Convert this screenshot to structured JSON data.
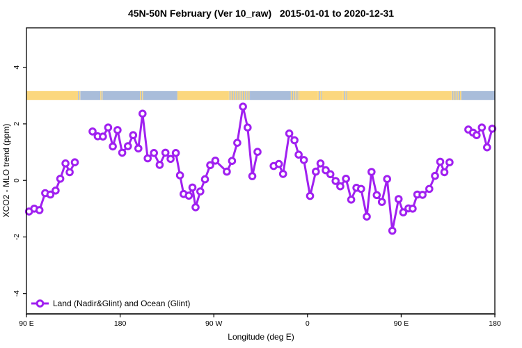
{
  "title": "45N-50N February (Ver 10_raw)   2015-01-01 to 2020-12-31",
  "colors": {
    "series_purple": "#A020F0",
    "marker_fill": "#ffffff",
    "land_band": "#FBD77E",
    "ocean_band": "#A9BDDA",
    "axis": "#000000",
    "background": "#ffffff"
  },
  "legend": {
    "label": "Land (Nadir&Glint) and Ocean (Glint)",
    "position": "bottom-left"
  },
  "chart_data": {
    "type": "line",
    "title": "45N-50N February (Ver 10_raw)   2015-01-01 to 2020-12-31",
    "xlabel": "Longitude (deg E)",
    "ylabel": "XCO2 - MLO trend (ppm)",
    "x_axis": {
      "range_deg_east_continuous": [
        90,
        540
      ],
      "ticks": [
        {
          "lon": 90,
          "label": "90 E"
        },
        {
          "lon": 180,
          "label": "180"
        },
        {
          "lon": 270,
          "label": "90 W"
        },
        {
          "lon": 360,
          "label": "0"
        },
        {
          "lon": 450,
          "label": "90 E"
        },
        {
          "lon": 540,
          "label": "180"
        }
      ]
    },
    "y_axis": {
      "range": [
        -4.7,
        5.4
      ],
      "ticks": [
        -4,
        -2,
        0,
        2,
        4
      ]
    },
    "grid": "off",
    "legend_entries": [
      "Land (Nadir&Glint) and Ocean (Glint)"
    ],
    "surface_band": {
      "y_value": 3,
      "meaning": "land (sand) vs ocean (blue) along latitude band",
      "segments": [
        {
          "from": 90,
          "to": 138.5,
          "type": "land"
        },
        {
          "from": 138.5,
          "to": 142,
          "type": "mixed"
        },
        {
          "from": 142,
          "to": 161,
          "type": "ocean"
        },
        {
          "from": 161,
          "to": 163.5,
          "type": "mixed"
        },
        {
          "from": 163.5,
          "to": 199,
          "type": "ocean"
        },
        {
          "from": 199,
          "to": 202,
          "type": "mixed"
        },
        {
          "from": 202,
          "to": 235,
          "type": "ocean"
        },
        {
          "from": 235,
          "to": 284,
          "type": "land"
        },
        {
          "from": 284,
          "to": 305,
          "type": "mixed"
        },
        {
          "from": 305,
          "to": 344,
          "type": "ocean"
        },
        {
          "from": 344,
          "to": 352,
          "type": "mixed"
        },
        {
          "from": 352,
          "to": 370,
          "type": "land"
        },
        {
          "from": 370,
          "to": 374,
          "type": "mixed"
        },
        {
          "from": 374,
          "to": 394,
          "type": "land"
        },
        {
          "from": 394,
          "to": 398,
          "type": "mixed"
        },
        {
          "from": 398,
          "to": 498,
          "type": "land"
        },
        {
          "from": 498,
          "to": 508,
          "type": "mixed"
        },
        {
          "from": 508,
          "to": 540,
          "type": "ocean"
        }
      ]
    },
    "series": [
      {
        "name": "Land (Nadir&Glint) and Ocean (Glint)",
        "marker": "open-circle",
        "segments": [
          [
            [
              92.5,
              -1.1
            ],
            [
              97.5,
              -1.0
            ],
            [
              102.5,
              -1.05
            ],
            [
              108,
              -0.45
            ],
            [
              113,
              -0.5
            ],
            [
              118,
              -0.36
            ],
            [
              122.5,
              0.06
            ],
            [
              127.5,
              0.6
            ],
            [
              131.5,
              0.29
            ],
            [
              136.5,
              0.64
            ]
          ],
          [
            [
              153.5,
              1.73
            ],
            [
              158.5,
              1.56
            ],
            [
              163.5,
              1.55
            ],
            [
              168.5,
              1.87
            ],
            [
              173,
              1.2
            ],
            [
              177.5,
              1.78
            ],
            [
              182,
              0.98
            ],
            [
              187.5,
              1.21
            ],
            [
              192.5,
              1.6
            ],
            [
              197.5,
              1.13
            ],
            [
              201.5,
              2.36
            ],
            [
              206.5,
              0.78
            ],
            [
              212.5,
              0.97
            ],
            [
              218,
              0.55
            ],
            [
              223.5,
              0.98
            ],
            [
              228.5,
              0.76
            ],
            [
              233.5,
              0.97
            ],
            [
              237.5,
              0.18
            ],
            [
              241,
              -0.48
            ],
            [
              246,
              -0.54
            ],
            [
              249.5,
              -0.25
            ],
            [
              252.5,
              -0.95
            ],
            [
              257,
              -0.39
            ],
            [
              261.5,
              0.04
            ],
            [
              266.5,
              0.54
            ],
            [
              271.5,
              0.7
            ],
            [
              282.5,
              0.31
            ],
            [
              287.5,
              0.69
            ],
            [
              292.5,
              1.33
            ],
            [
              298,
              2.61
            ],
            [
              302.5,
              1.87
            ],
            [
              307,
              0.15
            ],
            [
              312,
              1.01
            ]
          ],
          [
            [
              327.5,
              0.51
            ],
            [
              332.5,
              0.58
            ],
            [
              336.5,
              0.23
            ],
            [
              342.5,
              1.66
            ],
            [
              347.5,
              1.42
            ],
            [
              351.5,
              0.91
            ],
            [
              356.5,
              0.72
            ],
            [
              362.5,
              -0.55
            ],
            [
              368,
              0.31
            ],
            [
              372.5,
              0.6
            ],
            [
              377.5,
              0.36
            ],
            [
              382,
              0.22
            ],
            [
              387,
              -0.02
            ],
            [
              391.5,
              -0.21
            ],
            [
              397,
              0.06
            ],
            [
              402,
              -0.68
            ],
            [
              407,
              -0.26
            ],
            [
              411.5,
              -0.3
            ],
            [
              417,
              -1.28
            ],
            [
              421.5,
              0.3
            ],
            [
              426.5,
              -0.52
            ],
            [
              431.5,
              -0.76
            ],
            [
              436.5,
              0.05
            ],
            [
              441.5,
              -1.78
            ],
            [
              447.5,
              -0.66
            ],
            [
              452,
              -1.13
            ],
            [
              457,
              -0.99
            ],
            [
              461,
              -1.0
            ],
            [
              465.5,
              -0.5
            ],
            [
              470.5,
              -0.51
            ],
            [
              477,
              -0.3
            ],
            [
              482.5,
              0.16
            ],
            [
              487.5,
              0.66
            ],
            [
              491.5,
              0.29
            ],
            [
              496.5,
              0.64
            ]
          ],
          [
            [
              514.5,
              1.8
            ],
            [
              519,
              1.69
            ],
            [
              522.5,
              1.6
            ],
            [
              527.5,
              1.87
            ],
            [
              532.5,
              1.17
            ],
            [
              537.5,
              1.83
            ]
          ]
        ]
      }
    ]
  }
}
